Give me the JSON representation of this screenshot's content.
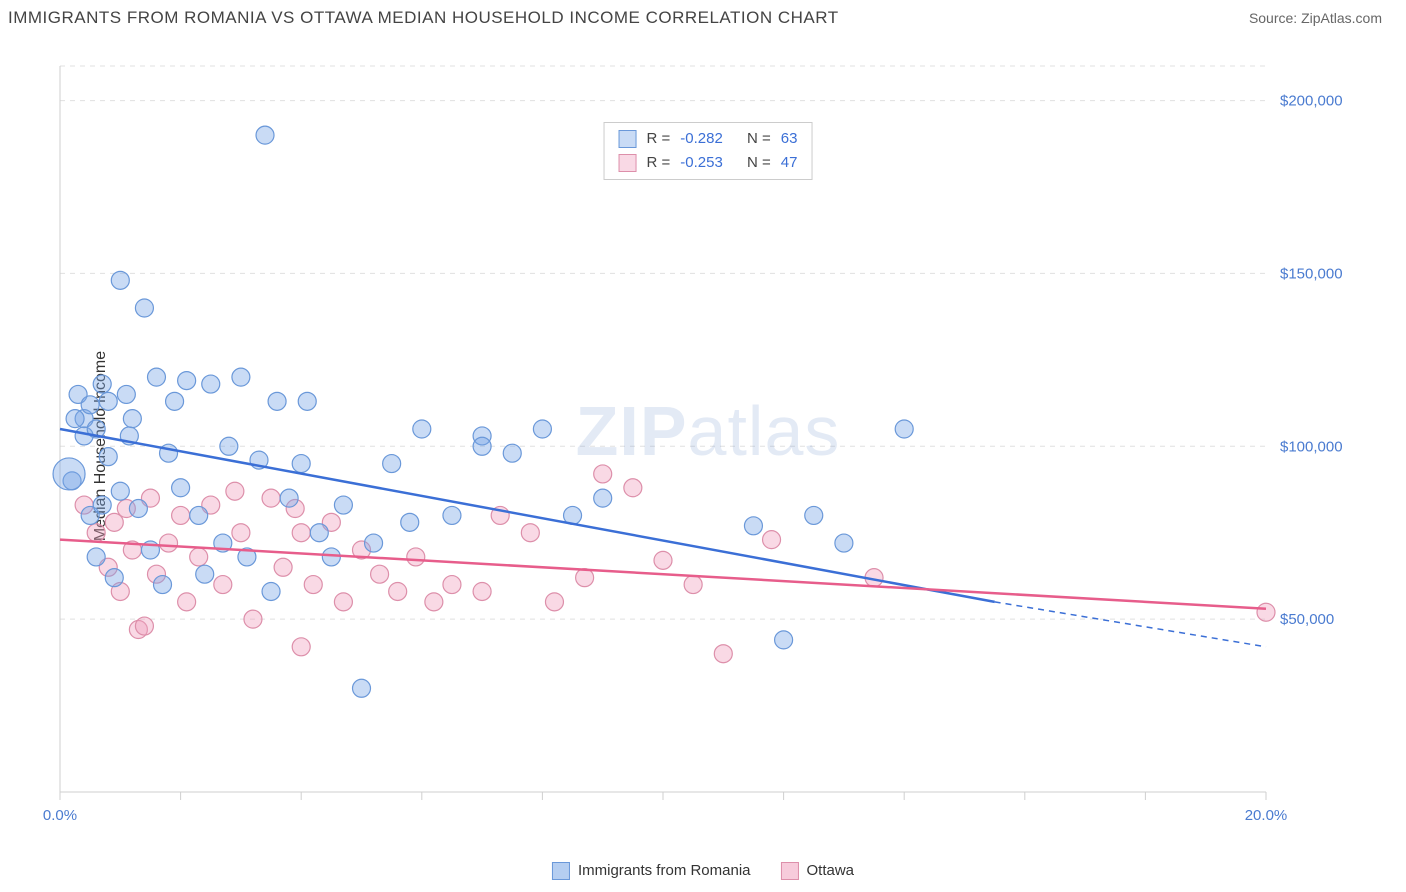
{
  "header": {
    "title": "IMMIGRANTS FROM ROMANIA VS OTTAWA MEDIAN HOUSEHOLD INCOME CORRELATION CHART",
    "source": "Source: ZipAtlas.com"
  },
  "watermark": {
    "zip": "ZIP",
    "atlas": "atlas"
  },
  "chart": {
    "type": "scatter",
    "ylabel": "Median Household Income",
    "xlim": [
      0,
      20
    ],
    "ylim": [
      0,
      210000
    ],
    "xtick_values": [
      0,
      2,
      4,
      6,
      8,
      10,
      12,
      14,
      16,
      18,
      20
    ],
    "xtick_labels": {
      "0": "0.0%",
      "20": "20.0%"
    },
    "ygrid_values": [
      50000,
      100000,
      150000,
      200000
    ],
    "ygrid_labels": [
      "$50,000",
      "$100,000",
      "$150,000",
      "$200,000"
    ],
    "background_color": "#ffffff",
    "grid_color": "#e0e0e0",
    "axis_color": "#cfcfcf",
    "tick_label_color": "#4a7bd0",
    "series": [
      {
        "name": "Immigrants from Romania",
        "stroke": "#3b6fd6",
        "fill": "rgba(120,165,230,0.40)",
        "marker_stroke": "#6a98d9",
        "r_label": "R =",
        "r": "-0.282",
        "n_label": "N =",
        "n": "63",
        "trend": {
          "x1": 0,
          "y1": 105000,
          "x2": 15.5,
          "y2": 55000
        },
        "trend_dash": {
          "x1": 15.5,
          "y1": 55000,
          "x2": 20,
          "y2": 42000
        },
        "points": [
          [
            0.2,
            90000
          ],
          [
            0.3,
            115000
          ],
          [
            0.4,
            108000
          ],
          [
            0.4,
            103000
          ],
          [
            0.5,
            80000
          ],
          [
            0.5,
            112000
          ],
          [
            0.6,
            105000
          ],
          [
            0.6,
            68000
          ],
          [
            0.7,
            118000
          ],
          [
            0.7,
            83000
          ],
          [
            0.8,
            113000
          ],
          [
            0.8,
            97000
          ],
          [
            0.9,
            62000
          ],
          [
            1.0,
            148000
          ],
          [
            1.0,
            87000
          ],
          [
            1.1,
            115000
          ],
          [
            1.2,
            108000
          ],
          [
            1.3,
            82000
          ],
          [
            1.4,
            140000
          ],
          [
            1.5,
            70000
          ],
          [
            1.6,
            120000
          ],
          [
            1.7,
            60000
          ],
          [
            1.8,
            98000
          ],
          [
            1.9,
            113000
          ],
          [
            2.0,
            88000
          ],
          [
            2.1,
            119000
          ],
          [
            2.3,
            80000
          ],
          [
            2.4,
            63000
          ],
          [
            2.5,
            118000
          ],
          [
            2.7,
            72000
          ],
          [
            2.8,
            100000
          ],
          [
            3.0,
            120000
          ],
          [
            3.1,
            68000
          ],
          [
            3.3,
            96000
          ],
          [
            3.4,
            190000
          ],
          [
            3.5,
            58000
          ],
          [
            3.6,
            113000
          ],
          [
            3.8,
            85000
          ],
          [
            4.0,
            95000
          ],
          [
            4.1,
            113000
          ],
          [
            4.3,
            75000
          ],
          [
            4.5,
            68000
          ],
          [
            4.7,
            83000
          ],
          [
            5.0,
            30000
          ],
          [
            5.2,
            72000
          ],
          [
            5.5,
            95000
          ],
          [
            5.8,
            78000
          ],
          [
            6.0,
            105000
          ],
          [
            6.5,
            80000
          ],
          [
            7.0,
            103000
          ],
          [
            7.5,
            98000
          ],
          [
            8.0,
            105000
          ],
          [
            8.5,
            80000
          ],
          [
            7.0,
            100000
          ],
          [
            9.0,
            85000
          ],
          [
            11.5,
            77000
          ],
          [
            12.0,
            44000
          ],
          [
            12.5,
            80000
          ],
          [
            13.0,
            72000
          ],
          [
            14.0,
            105000
          ],
          [
            0.15,
            92000
          ],
          [
            0.25,
            108000
          ],
          [
            1.15,
            103000
          ]
        ]
      },
      {
        "name": "Ottawa",
        "stroke": "#e75d8b",
        "fill": "rgba(240,160,190,0.40)",
        "marker_stroke": "#dd8faa",
        "r_label": "R =",
        "r": "-0.253",
        "n_label": "N =",
        "n": "47",
        "trend": {
          "x1": 0,
          "y1": 73000,
          "x2": 20,
          "y2": 53000
        },
        "points": [
          [
            0.4,
            83000
          ],
          [
            0.6,
            75000
          ],
          [
            0.8,
            65000
          ],
          [
            0.9,
            78000
          ],
          [
            1.0,
            58000
          ],
          [
            1.1,
            82000
          ],
          [
            1.2,
            70000
          ],
          [
            1.3,
            47000
          ],
          [
            1.5,
            85000
          ],
          [
            1.6,
            63000
          ],
          [
            1.8,
            72000
          ],
          [
            2.0,
            80000
          ],
          [
            2.1,
            55000
          ],
          [
            2.3,
            68000
          ],
          [
            2.5,
            83000
          ],
          [
            2.7,
            60000
          ],
          [
            2.9,
            87000
          ],
          [
            3.0,
            75000
          ],
          [
            3.2,
            50000
          ],
          [
            3.5,
            85000
          ],
          [
            3.7,
            65000
          ],
          [
            3.9,
            82000
          ],
          [
            4.0,
            42000
          ],
          [
            4.2,
            60000
          ],
          [
            4.5,
            78000
          ],
          [
            4.7,
            55000
          ],
          [
            5.0,
            70000
          ],
          [
            5.3,
            63000
          ],
          [
            5.6,
            58000
          ],
          [
            5.9,
            68000
          ],
          [
            6.2,
            55000
          ],
          [
            6.5,
            60000
          ],
          [
            7.0,
            58000
          ],
          [
            7.3,
            80000
          ],
          [
            7.8,
            75000
          ],
          [
            8.2,
            55000
          ],
          [
            8.7,
            62000
          ],
          [
            9.0,
            92000
          ],
          [
            9.5,
            88000
          ],
          [
            10.0,
            67000
          ],
          [
            10.5,
            60000
          ],
          [
            11.0,
            40000
          ],
          [
            11.8,
            73000
          ],
          [
            13.5,
            62000
          ],
          [
            20.0,
            52000
          ],
          [
            4.0,
            75000
          ],
          [
            1.4,
            48000
          ]
        ]
      }
    ],
    "legend_bottom": [
      {
        "label": "Immigrants from Romania",
        "fill": "rgba(120,165,230,0.55)",
        "stroke": "#6a98d9"
      },
      {
        "label": "Ottawa",
        "fill": "rgba(240,160,190,0.55)",
        "stroke": "#dd8faa"
      }
    ]
  }
}
